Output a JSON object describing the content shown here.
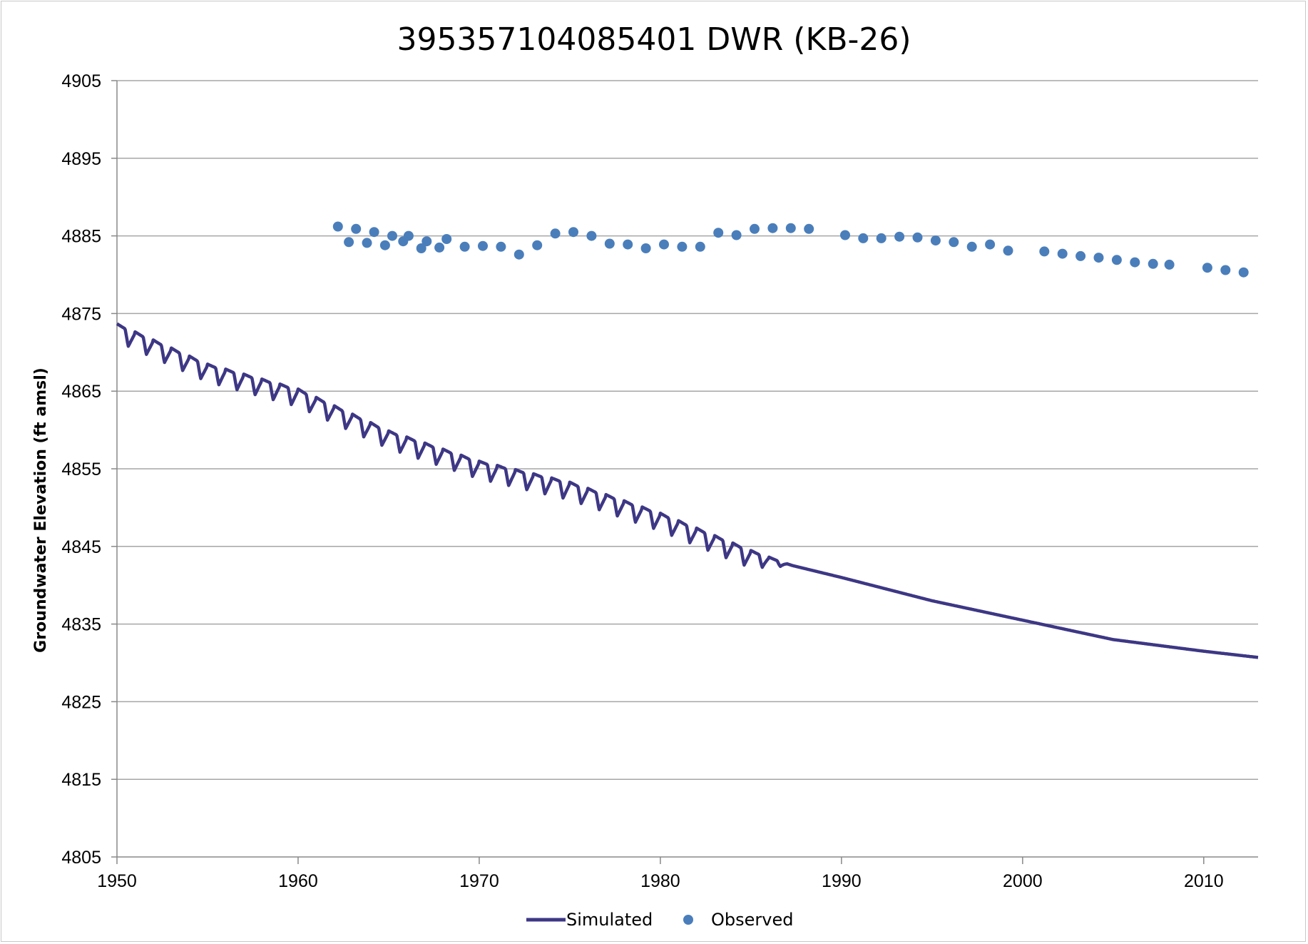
{
  "chart_data": {
    "type": "line",
    "title": "395357104085401 DWR (KB-26)",
    "xlabel": "",
    "ylabel": "Groundwater Elevation (ft amsl)",
    "xlim": [
      1950,
      2013
    ],
    "ylim": [
      4805,
      4905
    ],
    "xticks": [
      "1950",
      "1960",
      "1970",
      "1980",
      "1990",
      "2000",
      "2010"
    ],
    "yticks": [
      "4805",
      "4815",
      "4825",
      "4835",
      "4845",
      "4855",
      "4865",
      "4875",
      "4885",
      "4895",
      "4905"
    ],
    "grid": "horizontal",
    "legend_position": "bottom",
    "series": [
      {
        "name": "Simulated",
        "kind": "line",
        "color": "#3d3785",
        "note_seasonal": "annual saw-tooth oscillation through ~1987, smooth afterwards",
        "x": [
          1950,
          1955,
          1960,
          1965,
          1970,
          1975,
          1980,
          1985,
          1987,
          1990,
          1995,
          2000,
          2005,
          2010,
          2013
        ],
        "values": [
          4873.2,
          4868.0,
          4864.8,
          4859.4,
          4855.5,
          4852.8,
          4848.8,
          4844.0,
          4842.7,
          4841.0,
          4838.0,
          4835.5,
          4833.0,
          4831.5,
          4830.7
        ]
      },
      {
        "name": "Observed",
        "kind": "scatter",
        "color": "#4a7ebb",
        "x": [
          1962.2,
          1962.8,
          1963.2,
          1963.8,
          1964.2,
          1964.8,
          1965.2,
          1965.8,
          1966.1,
          1966.8,
          1967.1,
          1967.8,
          1968.2,
          1969.2,
          1970.2,
          1971.2,
          1972.2,
          1973.2,
          1974.2,
          1975.2,
          1976.2,
          1977.2,
          1978.2,
          1979.2,
          1980.2,
          1981.2,
          1982.2,
          1983.2,
          1984.2,
          1985.2,
          1986.2,
          1987.2,
          1988.2,
          1990.2,
          1991.2,
          1992.2,
          1993.2,
          1994.2,
          1995.2,
          1996.2,
          1997.2,
          1998.2,
          1999.2,
          2001.2,
          2002.2,
          2003.2,
          2004.2,
          2005.2,
          2006.2,
          2007.2,
          2008.1,
          2010.2,
          2011.2,
          2012.2
        ],
        "values": [
          4886.2,
          4884.2,
          4885.9,
          4884.1,
          4885.5,
          4883.8,
          4885.0,
          4884.3,
          4885.0,
          4883.4,
          4884.3,
          4883.5,
          4884.6,
          4883.6,
          4883.7,
          4883.6,
          4882.6,
          4883.8,
          4885.3,
          4885.5,
          4885.0,
          4884.0,
          4883.9,
          4883.4,
          4883.9,
          4883.6,
          4883.6,
          4885.4,
          4885.1,
          4885.9,
          4886.0,
          4886.0,
          4885.9,
          4885.1,
          4884.7,
          4884.7,
          4884.9,
          4884.8,
          4884.4,
          4884.2,
          4883.6,
          4883.9,
          4883.1,
          4883.0,
          4882.7,
          4882.4,
          4882.2,
          4881.9,
          4881.6,
          4881.4,
          4881.3,
          4880.9,
          4880.6,
          4880.3
        ]
      }
    ]
  }
}
